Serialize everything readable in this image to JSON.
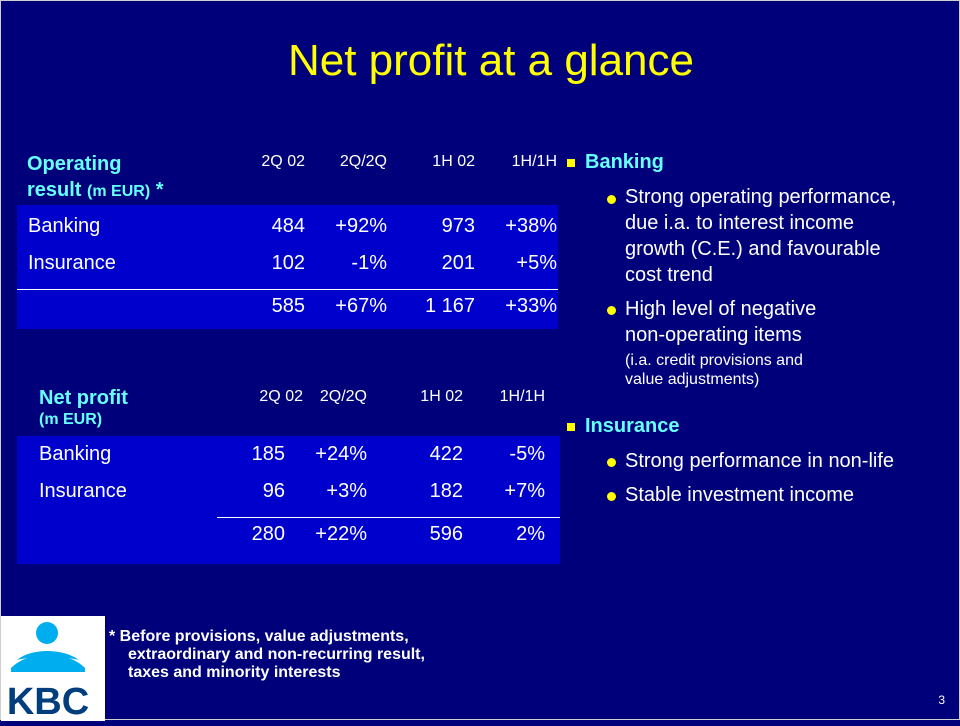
{
  "slide": {
    "title": "Net profit at a glance",
    "page_number": "3"
  },
  "operating_table": {
    "caption_line1": "Operating",
    "caption_line2_a": "result ",
    "caption_unit": "(m EUR)",
    "caption_star": " *",
    "columns": [
      "2Q  02",
      "2Q/2Q",
      "1H 02",
      "1H/1H"
    ],
    "rows": [
      {
        "label": "Banking",
        "values": [
          "484",
          "+92%",
          "973",
          "+38%"
        ]
      },
      {
        "label": "Insurance",
        "values": [
          "102",
          "-1%",
          "201",
          "+5%"
        ]
      },
      {
        "label": "",
        "values": [
          "585",
          "+67%",
          "1 167",
          "+33%"
        ]
      }
    ]
  },
  "netprofit_table": {
    "caption_line1": "Net profit",
    "caption_line2": "(m EUR)",
    "columns": [
      "2Q 02",
      "2Q/2Q",
      "1H 02",
      "1H/1H"
    ],
    "rows": [
      {
        "label": "Banking",
        "values": [
          "185",
          "+24%",
          "422",
          "-5%"
        ]
      },
      {
        "label": "Insurance",
        "values": [
          "96",
          "+3%",
          "182",
          "+7%"
        ]
      },
      {
        "label": "",
        "values": [
          "280",
          "+22%",
          "596",
          "2%"
        ]
      }
    ]
  },
  "commentary": {
    "banking": {
      "heading": "Banking",
      "b1": [
        "Strong operating performance,",
        "due i.a. to interest income",
        "growth (C.E.) and favourable",
        "cost trend"
      ],
      "b2": [
        "High level of negative",
        "non-operating items"
      ],
      "b2_note": [
        "(i.a. credit provisions and",
        "value adjustments)"
      ]
    },
    "insurance": {
      "heading": "Insurance",
      "b1": "Strong performance in non-life",
      "b2": "Stable investment income"
    }
  },
  "footnote": {
    "line1": "*  Before provisions, value adjustments,",
    "line2": "extraordinary and non-recurring result,",
    "line3": "taxes and minority interests"
  },
  "logo": {
    "text": "KBC",
    "colors": {
      "letters": "#003e7e",
      "figure": "#00aeef"
    }
  }
}
